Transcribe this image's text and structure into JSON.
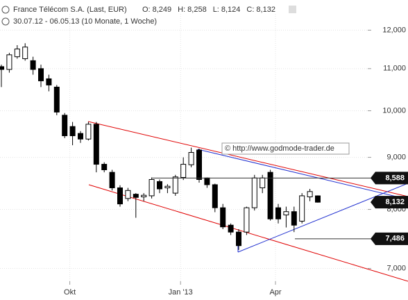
{
  "chart_data": {
    "type": "candlestick",
    "title": "France Télécom S.A. (Last, EUR)",
    "quote": [
      {
        "label": "O:",
        "value": "8,249"
      },
      {
        "label": "H:",
        "value": "8,258"
      },
      {
        "label": "L:",
        "value": "8,124"
      },
      {
        "label": "C:",
        "value": "8,132"
      }
    ],
    "subtitle": "30.07.12 - 06.05.13 (10 Monate, 1 Woche)",
    "watermark": "© http://www.godmode-trader.de",
    "categories": [
      null,
      null,
      null,
      null,
      null,
      null,
      null,
      null,
      null,
      "Okt",
      null,
      null,
      null,
      null,
      null,
      null,
      null,
      null,
      null,
      null,
      null,
      null,
      null,
      "Jan '13",
      null,
      null,
      null,
      null,
      null,
      null,
      null,
      null,
      null,
      null,
      null,
      "Apr",
      null,
      null,
      null,
      null,
      null
    ],
    "open": [
      11050,
      10980,
      11300,
      11250,
      11200,
      11000,
      10750,
      10550,
      9900,
      9650,
      9500,
      9380,
      9700,
      8860,
      8700,
      8400,
      8200,
      8280,
      8230,
      8250,
      8520,
      8400,
      8300,
      8600,
      8850,
      9150,
      8590,
      8460,
      8030,
      7720,
      7600,
      7600,
      8030,
      8400,
      8700,
      8030,
      7900,
      7960,
      7790,
      8230,
      8249
    ],
    "high": [
      11100,
      11400,
      11600,
      11650,
      11300,
      11100,
      10850,
      10600,
      9950,
      9750,
      9550,
      9750,
      9750,
      8900,
      8750,
      8450,
      8400,
      8300,
      8300,
      8600,
      8560,
      8470,
      8650,
      9000,
      9200,
      9180,
      8600,
      8480,
      8100,
      7750,
      7650,
      8050,
      8650,
      8650,
      8750,
      8100,
      8050,
      8050,
      8300,
      8380,
      8258
    ],
    "low": [
      10550,
      10900,
      11250,
      11200,
      10850,
      10550,
      10450,
      9900,
      9400,
      9250,
      9300,
      9350,
      8700,
      8700,
      8350,
      8050,
      8150,
      7850,
      8150,
      8200,
      8300,
      8300,
      8250,
      8550,
      8800,
      8500,
      8400,
      7950,
      7650,
      7550,
      7300,
      7550,
      7980,
      8300,
      7800,
      7750,
      7680,
      7600,
      7750,
      8150,
      8124
    ],
    "close": [
      10980,
      11350,
      11500,
      11550,
      10980,
      10700,
      10600,
      9970,
      9450,
      9450,
      9380,
      9700,
      8860,
      8750,
      8400,
      8100,
      8350,
      8220,
      8260,
      8560,
      8380,
      8430,
      8610,
      8860,
      9100,
      8560,
      8460,
      8030,
      7690,
      7600,
      7370,
      8030,
      8590,
      8590,
      7830,
      7830,
      7960,
      7720,
      8250,
      8330,
      8132
    ],
    "up_color": "#ffffff",
    "down_color": "#000000",
    "levels": [
      {
        "value": 8588,
        "label": "8,588"
      },
      {
        "value": 8132,
        "label": "8,132"
      },
      {
        "value": 7486,
        "label": "7,486"
      }
    ],
    "log_scale": true,
    "ylim": [
      6800,
      12450
    ],
    "yticks": [
      {
        "value": 7000,
        "label": "7,000"
      },
      {
        "value": 8000,
        "label": "8,000"
      },
      {
        "value": 9000,
        "label": "9,000"
      },
      {
        "value": 10000,
        "label": "10,000"
      },
      {
        "value": 11000,
        "label": "11,000"
      },
      {
        "value": 12000,
        "label": "12,000"
      }
    ],
    "grid": true
  }
}
